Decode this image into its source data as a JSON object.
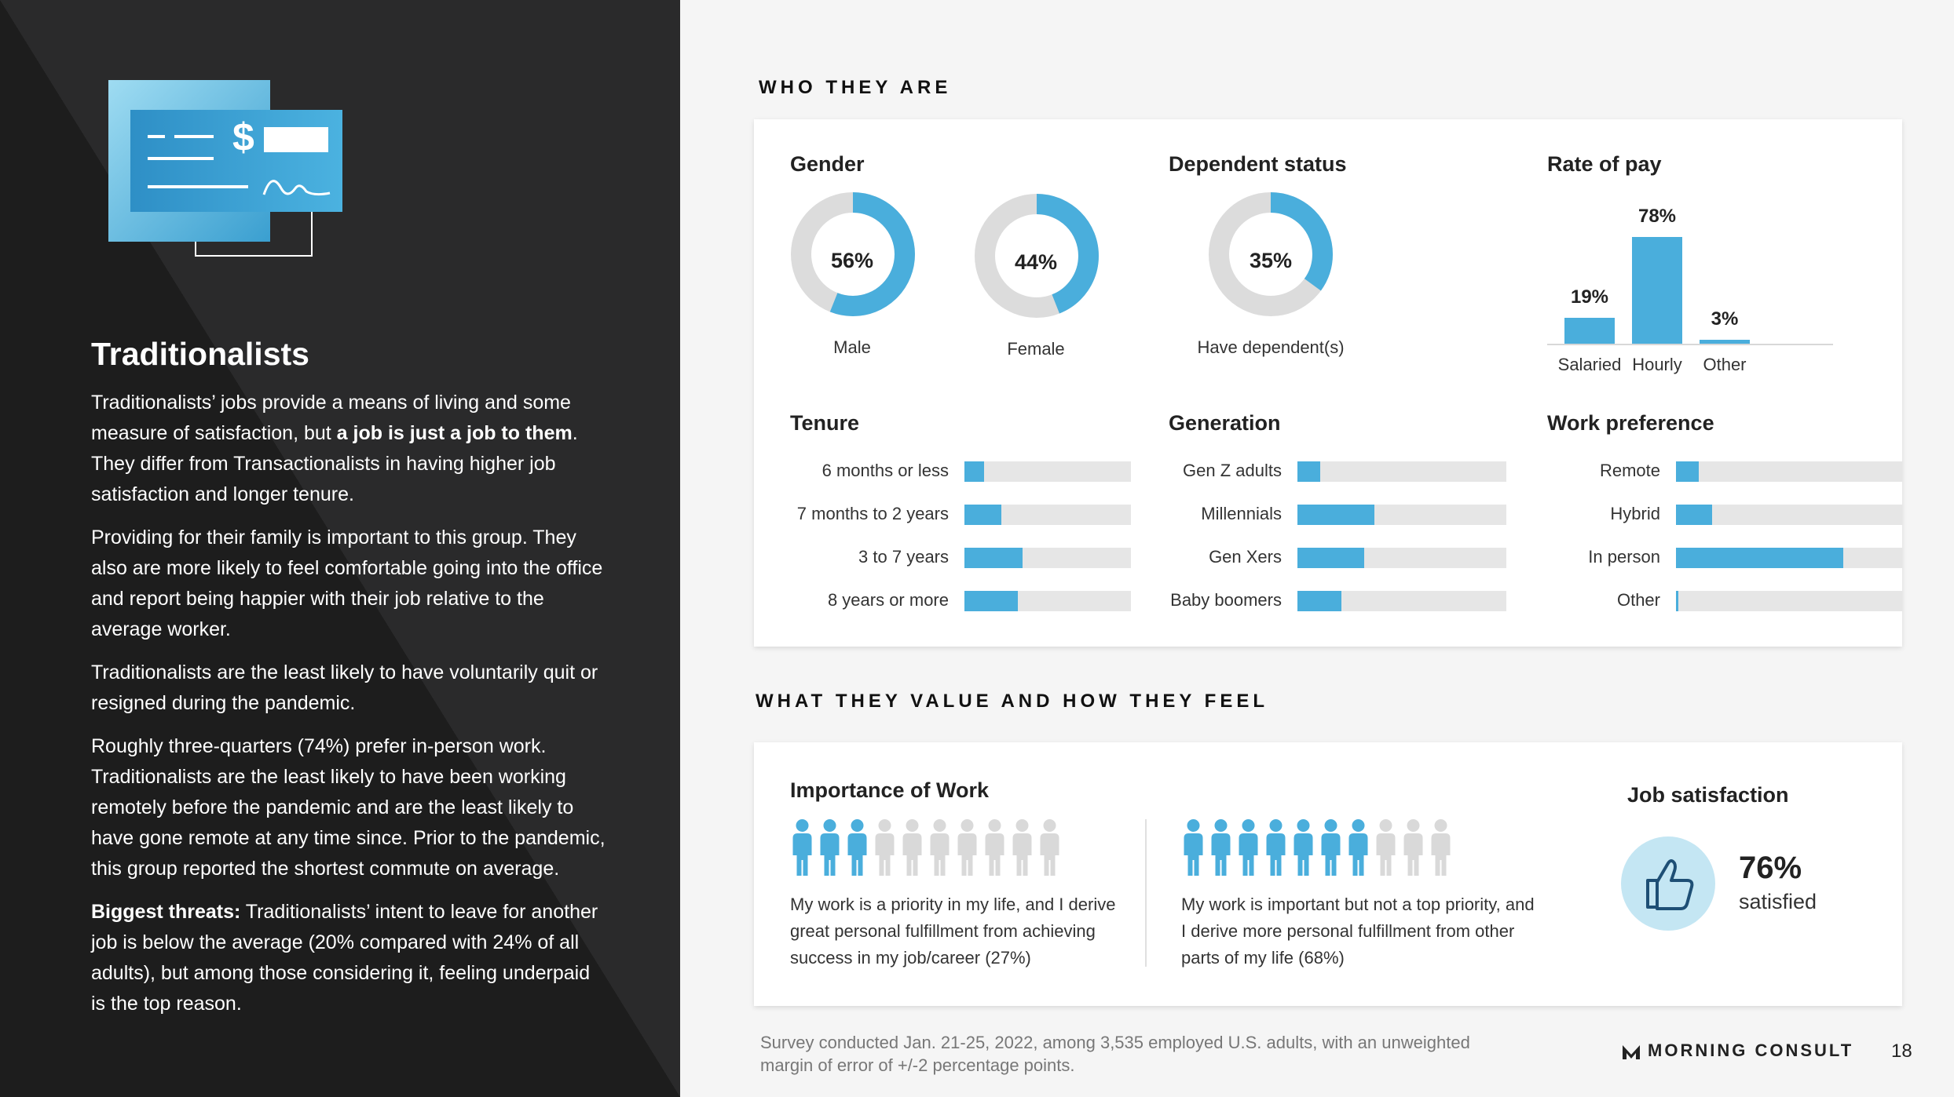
{
  "left": {
    "title": "Traditionalists",
    "p1a": "Traditionalists’ jobs provide a means of living and some measure of satisfaction, but ",
    "p1b": "a job is just a job to them",
    "p1c": ". They differ from Transactionalists in having higher job satisfaction and longer tenure.",
    "p2": "Providing for their family is important to this group. They also are more likely to feel comfortable going into the office and report being happier with their job relative to the average worker.",
    "p3": "Traditionalists are the least likely to have voluntarily quit or resigned during the pandemic.",
    "p4": "Roughly three-quarters (74%) prefer in-person work. Traditionalists are the least likely to have been working remotely before the pandemic and are the least likely to have gone remote at any time since. Prior to the pandemic, this group reported the shortest commute on average.",
    "p5a": "Biggest threats:",
    "p5b": " Traditionalists’ intent to leave for another job is below the average (20% compared with 24% of all adults), but among those considering it, feeling underpaid is the top reason."
  },
  "who": {
    "section_title": "WHO THEY ARE",
    "gender": {
      "title": "Gender",
      "items": [
        {
          "label": "Male",
          "pct_text": "56%",
          "value": 56
        },
        {
          "label": "Female",
          "pct_text": "44%",
          "value": 44
        }
      ]
    },
    "dependent": {
      "title": "Dependent status",
      "label": "Have dependent(s)",
      "pct_text": "35%",
      "value": 35
    },
    "pay": {
      "title": "Rate of pay",
      "items": [
        {
          "label": "Salaried",
          "pct_text": "19%",
          "value": 19
        },
        {
          "label": "Hourly",
          "pct_text": "78%",
          "value": 78
        },
        {
          "label": "Other",
          "pct_text": "3%",
          "value": 3
        }
      ]
    },
    "tenure": {
      "title": "Tenure",
      "items": [
        {
          "label": "6 months or less",
          "value": 12
        },
        {
          "label": "7 months to 2 years",
          "value": 22
        },
        {
          "label": "3 to 7 years",
          "value": 35
        },
        {
          "label": "8 years or more",
          "value": 32
        }
      ]
    },
    "generation": {
      "title": "Generation",
      "items": [
        {
          "label": "Gen Z adults",
          "value": 11
        },
        {
          "label": "Millennials",
          "value": 37
        },
        {
          "label": "Gen Xers",
          "value": 32
        },
        {
          "label": "Baby boomers",
          "value": 21
        }
      ]
    },
    "work_pref": {
      "title": "Work preference",
      "items": [
        {
          "label": "Remote",
          "value": 10
        },
        {
          "label": "Hybrid",
          "value": 16
        },
        {
          "label": "In person",
          "value": 74
        },
        {
          "label": "Other",
          "value": 1
        }
      ]
    }
  },
  "value": {
    "section_title": "WHAT THEY VALUE AND HOW THEY FEEL",
    "importance_title": "Importance of Work",
    "caption1": "My work is a priority in my life, and I derive great personal fulfillment from achieving success in my job/career (27%)",
    "caption2": "My work is important but not a top priority, and I derive more personal fulfillment from other parts of my life (68%)",
    "people1_filled": 3,
    "people2_filled": 7,
    "people_total": 10,
    "job_title": "Job satisfaction",
    "job_pct": "76%",
    "job_label": "satisfied"
  },
  "footer": {
    "note": "Survey conducted Jan. 21-25, 2022, among 3,535 employed U.S. adults, with an unweighted margin of error of +/-2 percentage points.",
    "brand": "MORNING CONSULT",
    "page": "18"
  },
  "colors": {
    "accent": "#4aaedc",
    "track": "#e6e6e6",
    "donut_bg": "#dcdcdc",
    "person_off": "#d9d9d9"
  }
}
